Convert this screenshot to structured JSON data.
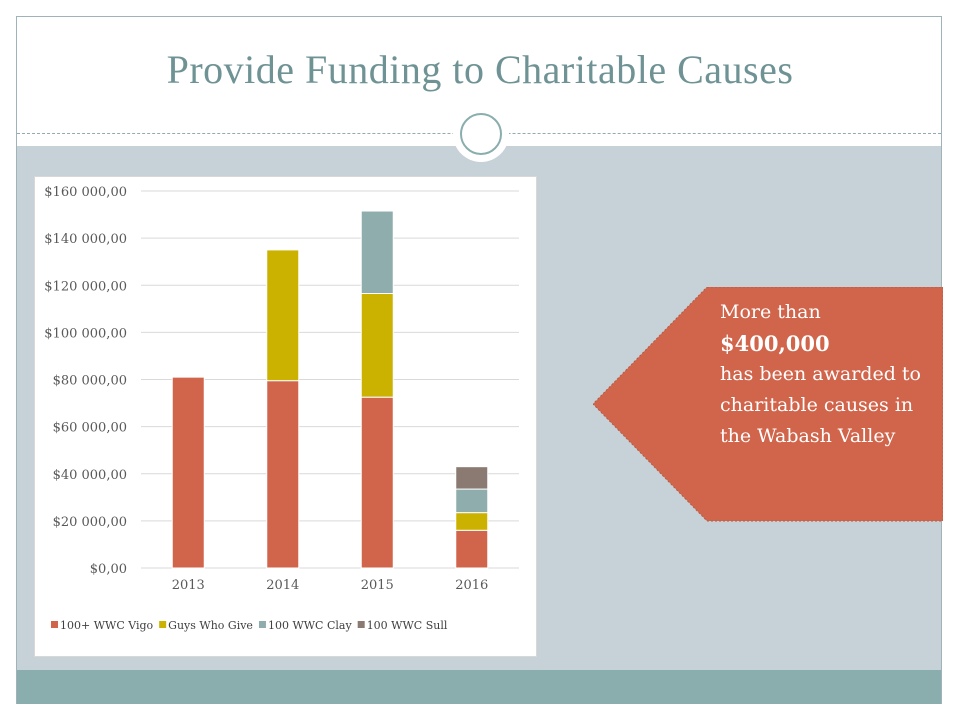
{
  "slide": {
    "title": "Provide Funding to Charitable Causes"
  },
  "callout": {
    "line1": "More than",
    "line2": "$400,000",
    "line3": " has been awarded to charitable causes in the Wabash Valley",
    "fill_color": "#d0654b"
  },
  "colors": {
    "title": "#6f9395",
    "content_bg": "#c7d2d8",
    "band": "#8aadad"
  },
  "chart_data": {
    "type": "bar",
    "stacked": true,
    "categories": [
      "2013",
      "2014",
      "2015",
      "2016"
    ],
    "series": [
      {
        "name": "100+ WWC Vigo",
        "color": "#d0654b",
        "values": [
          81000,
          79500,
          72500,
          16000
        ]
      },
      {
        "name": "Guys Who Give",
        "color": "#ccb200",
        "values": [
          0,
          55500,
          44000,
          7500
        ]
      },
      {
        "name": "100 WWC Clay",
        "color": "#8fadad",
        "values": [
          0,
          0,
          35000,
          10000
        ]
      },
      {
        "name": "100 WWC Sull",
        "color": "#8a7a72",
        "values": [
          0,
          0,
          0,
          9500
        ]
      }
    ],
    "y_ticks": [
      "$0,00",
      "$20 000,00",
      "$40 000,00",
      "$60 000,00",
      "$80 000,00",
      "$100 000,00",
      "$120 000,00",
      "$140 000,00",
      "$160 000,00"
    ],
    "ylim": [
      0,
      160000
    ],
    "grid": true,
    "legend_position": "bottom"
  }
}
